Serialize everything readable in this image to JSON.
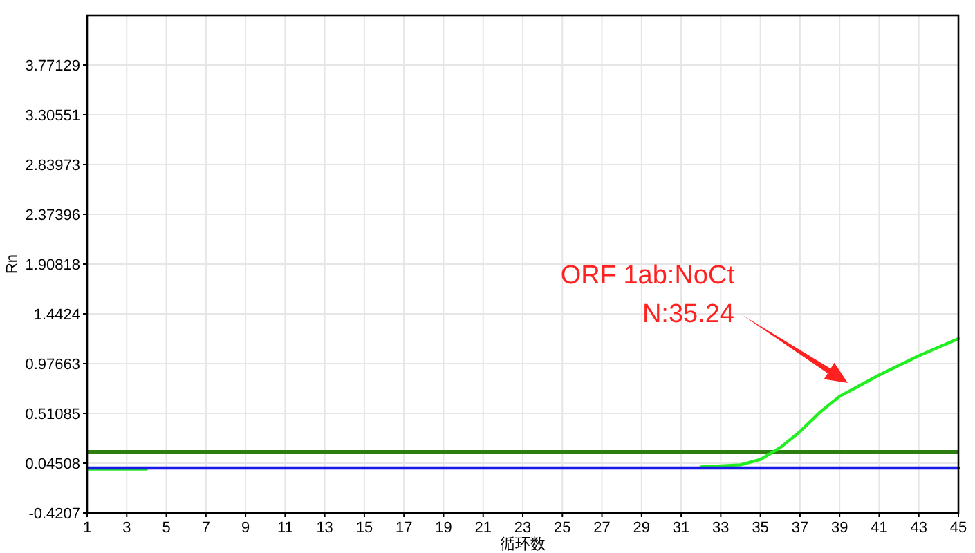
{
  "chart_data": {
    "type": "line",
    "xlabel": "循环数",
    "ylabel": "Rn",
    "x": [
      1,
      2,
      3,
      4,
      5,
      6,
      7,
      8,
      9,
      10,
      11,
      12,
      13,
      14,
      15,
      16,
      17,
      18,
      19,
      20,
      21,
      22,
      23,
      24,
      25,
      26,
      27,
      28,
      29,
      30,
      31,
      32,
      33,
      34,
      35,
      36,
      37,
      38,
      39,
      40,
      41,
      42,
      43,
      44,
      45
    ],
    "series": [
      {
        "color": "#22ee22",
        "values": [
          -0.01,
          -0.01,
          -0.01,
          -0.01,
          null,
          null,
          null,
          null,
          null,
          null,
          null,
          null,
          null,
          null,
          null,
          null,
          null,
          null,
          null,
          null,
          null,
          null,
          null,
          null,
          null,
          null,
          null,
          null,
          null,
          null,
          null,
          0.01,
          0.02,
          0.03,
          0.08,
          0.19,
          0.34,
          0.52,
          0.67,
          0.77,
          0.87,
          0.96,
          1.05,
          1.13,
          1.21
        ]
      },
      {
        "color": "#1a1ae6",
        "values": [
          0.0,
          0.0,
          0.0,
          0.0,
          0.0,
          0.0,
          0.0,
          0.0,
          0.0,
          0.0,
          0.0,
          0.0,
          0.0,
          0.0,
          0.0,
          0.0,
          0.0,
          0.0,
          0.0,
          0.0,
          0.0,
          0.0,
          0.0,
          0.0,
          0.0,
          0.0,
          0.0,
          0.0,
          0.0,
          0.0,
          0.0,
          0.0,
          0.0,
          0.0,
          0.0,
          0.0,
          0.0,
          0.0,
          0.0,
          0.0,
          0.0,
          0.0,
          0.0,
          0.0,
          0.0
        ]
      }
    ],
    "xlim": [
      1,
      45
    ],
    "xticks": [
      1,
      3,
      5,
      7,
      9,
      11,
      13,
      15,
      17,
      19,
      21,
      23,
      25,
      27,
      29,
      31,
      33,
      35,
      37,
      39,
      41,
      43,
      45
    ],
    "ylim": [
      -0.4207,
      4.23707
    ],
    "yticks": [
      -0.4207,
      0.04508,
      0.51085,
      0.97663,
      1.4424,
      1.90818,
      2.37396,
      2.83973,
      3.30551,
      3.77129
    ],
    "grid": true,
    "ref_lines": [
      {
        "axis": "y",
        "value": 0.149,
        "color": "#2e7d10"
      }
    ],
    "annotations": [
      "ORF 1ab:NoCt\nN:35.24"
    ]
  }
}
